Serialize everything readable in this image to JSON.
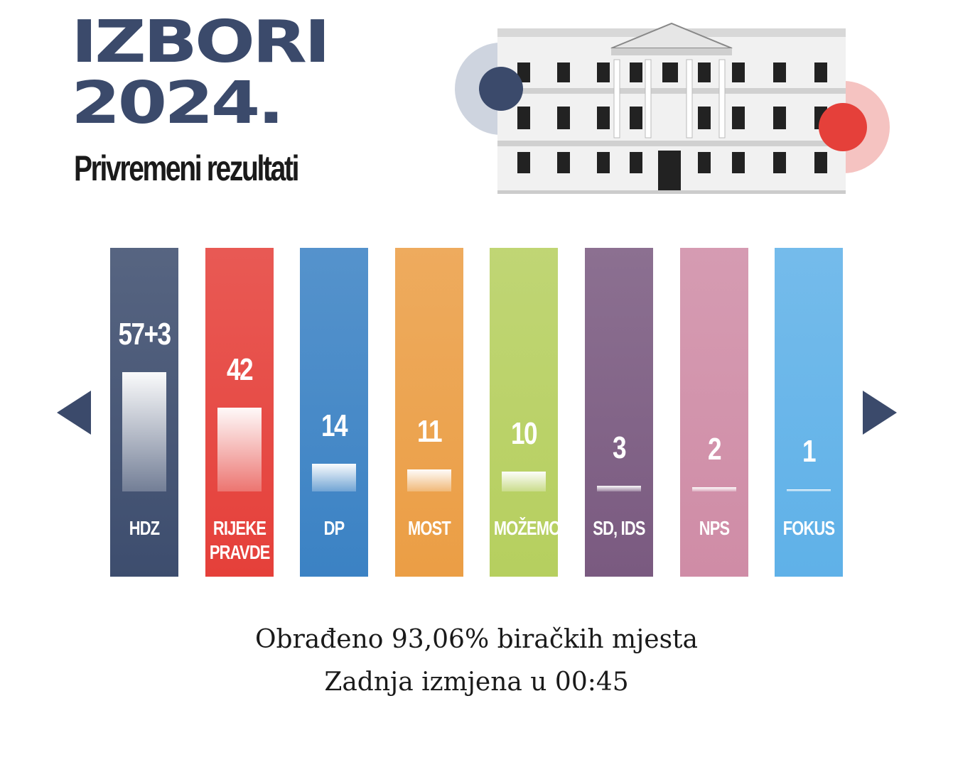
{
  "header": {
    "title_line1": "IZBORI",
    "title_line2": "2024.",
    "subtitle": "Privremeni rezultati"
  },
  "footer": {
    "processed": "Obrađeno 93,06% biračkih mjesta",
    "last_update": "Zadnja izmjena u 00:45"
  },
  "colors": {
    "title": "#3b4a6b",
    "arrows": "#3b4a6b",
    "accent_blue": "#3b4a6b",
    "accent_red": "#e5403a"
  },
  "chart_data": {
    "type": "bar",
    "categories": [
      "HDZ",
      "RIJEKE PRAVDE",
      "DP",
      "MOST",
      "MOŽEMO!",
      "SD, IDS",
      "NPS",
      "FOKUS"
    ],
    "values": [
      60,
      42,
      14,
      11,
      10,
      3,
      2,
      1
    ],
    "value_labels": [
      "57+3",
      "42",
      "14",
      "11",
      "10",
      "3",
      "2",
      "1"
    ],
    "name_labels": [
      "HDZ",
      "RIJEKE\nPRAVDE",
      "DP",
      "MOST",
      "MOŽEMO!",
      "SD, IDS",
      "NPS",
      "FOKUS"
    ],
    "colors": [
      "#3d4d6e",
      "#e5403a",
      "#3b82c4",
      "#eb9e45",
      "#b6cf5f",
      "#7a5a80",
      "#cf8ca6",
      "#5fb1e8"
    ],
    "ylim": [
      0,
      60
    ]
  }
}
